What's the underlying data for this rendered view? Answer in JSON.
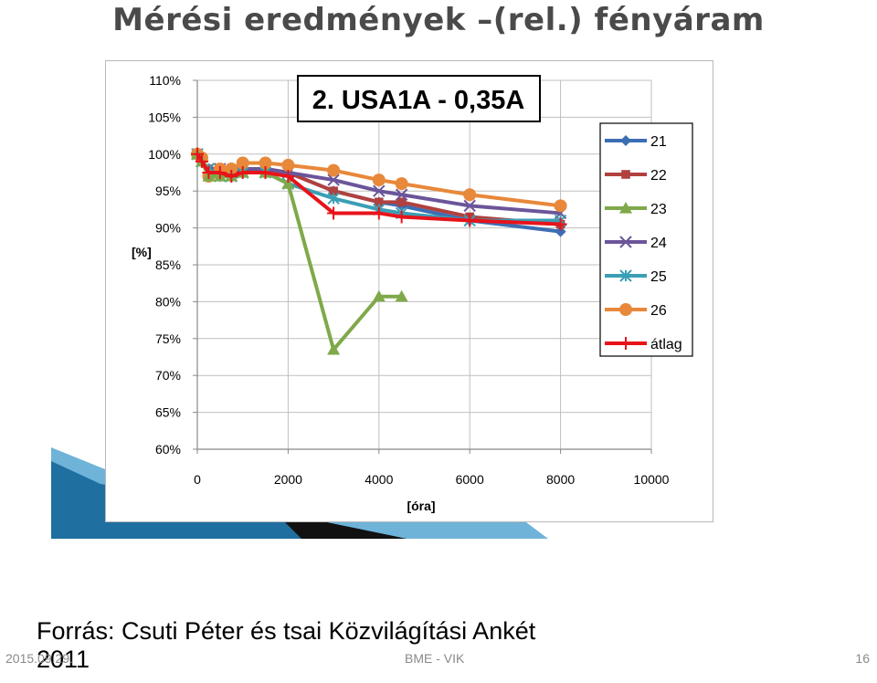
{
  "slide": {
    "title": "Mérési eredmények –(rel.) fényáram",
    "source_line1": "Forrás: Csuti Péter és tsai Közvilágítási Ankét",
    "source_line2": "2011",
    "footer_date": "2015.09.29.",
    "footer_center": "BME - VIK",
    "page_number": "16"
  },
  "colors": {
    "title": "#4a4a4a",
    "grid": "#bfbfbf",
    "axis_text": "#000000",
    "deco_band": "#1f7fb0"
  },
  "chart_data": {
    "type": "line",
    "title": "2. USA1A - 0,35A",
    "xlabel": "[óra]",
    "ylabel": "[%]",
    "xlim": [
      0,
      10000
    ],
    "ylim": [
      60,
      110
    ],
    "xticks": [
      0,
      2000,
      4000,
      6000,
      8000,
      10000
    ],
    "xtick_labels": [
      "0",
      "2000",
      "4000",
      "6000",
      "8000",
      "10000"
    ],
    "yticks": [
      60,
      65,
      70,
      75,
      80,
      85,
      90,
      95,
      100,
      105,
      110
    ],
    "ytick_labels": [
      "60%",
      "65%",
      "70%",
      "75%",
      "80%",
      "85%",
      "90%",
      "95%",
      "100%",
      "105%",
      "110%"
    ],
    "grid": true,
    "legend_position": "right",
    "series": [
      {
        "name": "21",
        "color": "#3c6eb4",
        "marker": "diamond",
        "x": [
          0,
          100,
          250,
          500,
          750,
          1000,
          1500,
          2000,
          3000,
          4000,
          4500,
          6000,
          8000
        ],
        "y": [
          100,
          99,
          98,
          97.5,
          97.5,
          98,
          98,
          97.5,
          95,
          93.5,
          93,
          91,
          89.5
        ]
      },
      {
        "name": "22",
        "color": "#b0413e",
        "marker": "square",
        "x": [
          0,
          100,
          250,
          500,
          750,
          1000,
          1500,
          2000,
          3000,
          4000,
          4500,
          6000,
          8000
        ],
        "y": [
          100,
          99,
          98,
          98,
          97.5,
          98,
          98,
          97.5,
          95,
          93.5,
          93.5,
          91.5,
          90.5
        ]
      },
      {
        "name": "23",
        "color": "#7fa94a",
        "marker": "triangle",
        "x": [
          0,
          100,
          250,
          500,
          750,
          1000,
          1500,
          2000,
          3000,
          4000,
          4500
        ],
        "y": [
          100,
          99,
          97,
          97,
          97,
          97.5,
          97.5,
          96,
          73.5,
          80.7,
          80.7
        ]
      },
      {
        "name": "24",
        "color": "#6b559a",
        "marker": "x",
        "x": [
          0,
          100,
          250,
          500,
          750,
          1000,
          1500,
          2000,
          3000,
          4000,
          4500,
          6000,
          8000
        ],
        "y": [
          100,
          99,
          98,
          98,
          97.5,
          98,
          98,
          97.5,
          96.5,
          95,
          94.5,
          93,
          92
        ]
      },
      {
        "name": "25",
        "color": "#3a9fb5",
        "marker": "star",
        "x": [
          0,
          100,
          250,
          500,
          750,
          1000,
          1500,
          2000,
          3000,
          4000,
          4500,
          6000,
          8000
        ],
        "y": [
          100,
          99,
          98,
          97,
          97,
          97.5,
          97.5,
          96,
          94,
          92.5,
          92,
          91,
          91
        ]
      },
      {
        "name": "26",
        "color": "#e8883a",
        "marker": "circle",
        "x": [
          0,
          100,
          250,
          500,
          750,
          1000,
          1500,
          2000,
          3000,
          4000,
          4500,
          6000,
          8000
        ],
        "y": [
          100,
          99.5,
          97,
          98,
          98,
          98.8,
          98.8,
          98.5,
          97.8,
          96.5,
          96,
          94.5,
          93
        ]
      },
      {
        "name": "átlag",
        "color": "#e8131a",
        "marker": "plus",
        "x": [
          0,
          100,
          250,
          500,
          750,
          1000,
          1500,
          2000,
          3000,
          4000,
          4500,
          6000,
          8000
        ],
        "y": [
          100,
          99,
          97.5,
          97.5,
          97,
          97.5,
          97.5,
          97,
          92,
          92,
          91.5,
          91,
          90.5
        ]
      }
    ]
  }
}
